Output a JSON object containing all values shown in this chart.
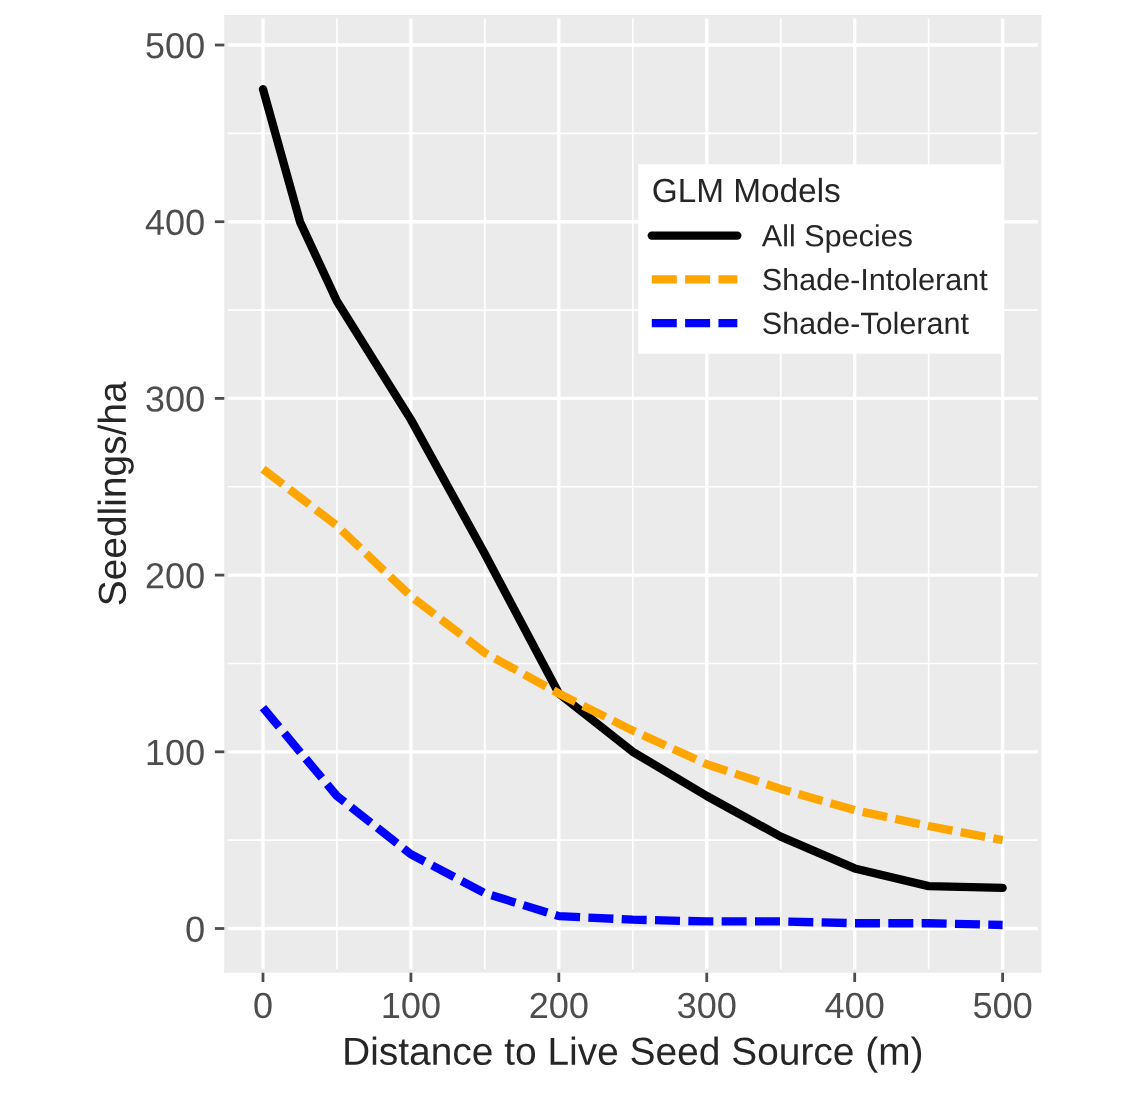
{
  "chart_data": {
    "type": "line",
    "xlabel": "Distance to Live Seed Source (m)",
    "ylabel": "Seedlings/ha",
    "legend_title": "GLM Models",
    "x": [
      0,
      25,
      50,
      100,
      150,
      200,
      250,
      300,
      350,
      400,
      450,
      500
    ],
    "series": [
      {
        "name": "All Species",
        "color": "#000000",
        "line_style": "solid",
        "values": [
          475,
          400,
          355,
          288,
          212,
          133,
          100,
          75,
          52,
          34,
          24,
          23
        ]
      },
      {
        "name": "Shade-Intolerant",
        "color": "#ffa500",
        "line_style": "dashed",
        "values": [
          260,
          244,
          228,
          188,
          156,
          133,
          112,
          93,
          79,
          67,
          58,
          50
        ]
      },
      {
        "name": "Shade-Tolerant",
        "color": "#0000ff",
        "line_style": "dashed",
        "values": [
          125,
          100,
          75,
          42,
          20,
          7,
          5,
          4,
          4,
          3,
          3,
          2
        ]
      }
    ],
    "xlim": [
      -25,
      525
    ],
    "ylim": [
      -24,
      516
    ],
    "xticks": [
      0,
      100,
      200,
      300,
      400,
      500
    ],
    "yticks": [
      0,
      100,
      200,
      300,
      400,
      500
    ],
    "grid": true,
    "legend": "top right"
  }
}
